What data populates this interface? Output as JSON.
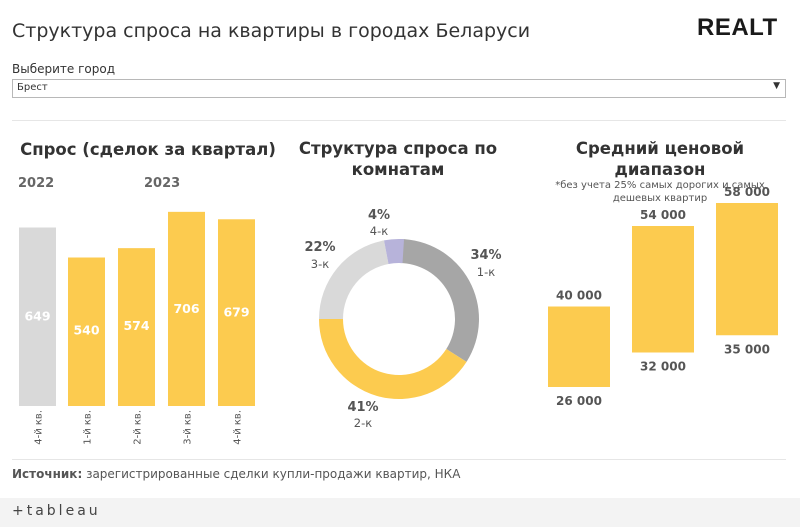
{
  "header": {
    "title": "Структура спроса на квартиры в городах Беларуси",
    "logo": "REALT"
  },
  "filter": {
    "label": "Выберите город",
    "value": "Брест",
    "arrow": "▼"
  },
  "sections": {
    "demand_title": "Спрос (сделок за квартал)",
    "rooms_title_line1": "Структура спроса по",
    "rooms_title_line2": "комнатам",
    "price_title_line1": "Средний ценовой",
    "price_title_line2": "диапазон",
    "price_note_line1": "*без учета 25% самых дорогих и самых",
    "price_note_line2": "дешевых квартир"
  },
  "source": {
    "label": "Источник:",
    "text": " зарегистрированные сделки купли-продажи квартир, НКА"
  },
  "footer": {
    "brand": "+tableau"
  },
  "colors": {
    "yellow": "#FCCB4F",
    "grey_bar": "#D9D9D9",
    "donut_1k": "#A6A6A6",
    "donut_2k": "#FCCB4F",
    "donut_3k": "#D9D9D9",
    "donut_4k": "#B7B3DA"
  },
  "chart_data": [
    {
      "type": "bar",
      "title": "Спрос (сделок за квартал)",
      "year_groups": [
        {
          "year": "2022",
          "categories": [
            "4-й кв."
          ]
        },
        {
          "year": "2023",
          "categories": [
            "1-й кв.",
            "2-й кв.",
            "3-й кв.",
            "4-й кв."
          ]
        }
      ],
      "categories": [
        "4-й кв.",
        "1-й кв.",
        "2-й кв.",
        "3-й кв.",
        "4-й кв."
      ],
      "values": [
        649,
        540,
        574,
        706,
        679
      ],
      "highlight": [
        false,
        true,
        true,
        true,
        true
      ],
      "ylim": [
        0,
        720
      ]
    },
    {
      "type": "pie",
      "title": "Структура спроса по комнатам",
      "donut": true,
      "slices": [
        {
          "label": "1-к",
          "percent": 34,
          "text": "34%",
          "color": "#A6A6A6"
        },
        {
          "label": "2-к",
          "percent": 41,
          "text": "41%",
          "color": "#FCCB4F"
        },
        {
          "label": "3-к",
          "percent": 22,
          "text": "22%",
          "color": "#D9D9D9"
        },
        {
          "label": "4-к",
          "percent": 4,
          "text": "4%",
          "color": "#B7B3DA"
        }
      ]
    },
    {
      "type": "bar",
      "subtype": "range",
      "title": "Средний ценовой диапазон",
      "ranges": [
        {
          "low": 26000,
          "high": 40000,
          "low_label": "26 000",
          "high_label": "40 000"
        },
        {
          "low": 32000,
          "high": 54000,
          "low_label": "32 000",
          "high_label": "54 000"
        },
        {
          "low": 35000,
          "high": 58000,
          "low_label": "35 000",
          "high_label": "58 000"
        }
      ],
      "ylim": [
        22000,
        62000
      ]
    }
  ]
}
